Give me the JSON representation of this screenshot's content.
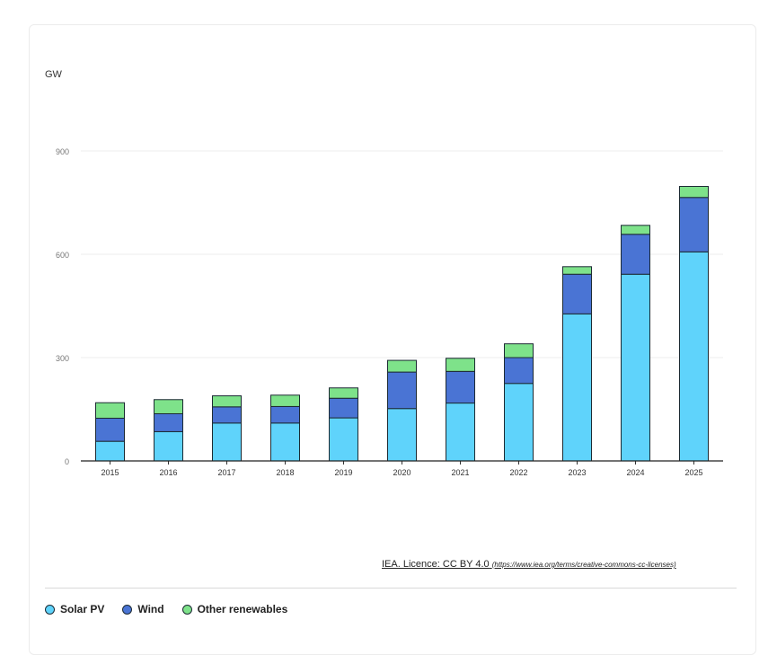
{
  "chart_data": {
    "type": "bar",
    "stacked": true,
    "ylabel": "GW",
    "ylim": [
      0,
      900
    ],
    "yticks": [
      0,
      300,
      600,
      900
    ],
    "grid": true,
    "categories": [
      "2015",
      "2016",
      "2017",
      "2018",
      "2019",
      "2020",
      "2021",
      "2022",
      "2023",
      "2024",
      "2025"
    ],
    "series": [
      {
        "name": "Solar PV",
        "color": "#5fd3fb",
        "values": [
          57,
          85,
          110,
          110,
          125,
          152,
          168,
          225,
          427,
          542,
          607
        ]
      },
      {
        "name": "Wind",
        "color": "#4a74d4",
        "values": [
          67,
          52,
          47,
          48,
          57,
          106,
          92,
          75,
          115,
          116,
          158
        ]
      },
      {
        "name": "Other renewables",
        "color": "#7ee28a",
        "values": [
          45,
          41,
          32,
          33,
          30,
          34,
          38,
          40,
          22,
          26,
          32
        ]
      }
    ],
    "legend_position": "bottom-left",
    "credit": "IEA. Licence: CC BY 4.0",
    "credit_url": "(https://www.iea.org/terms/creative-commons-cc-licenses)"
  }
}
